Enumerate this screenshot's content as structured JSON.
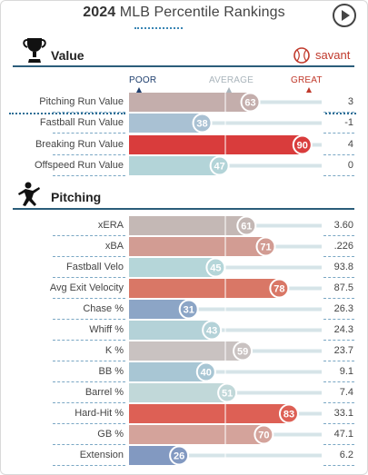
{
  "header": {
    "year": "2024",
    "title": "MLB Percentile Rankings",
    "play_icon": "play-icon"
  },
  "sections": {
    "value": {
      "title": "Value",
      "icon": "trophy-icon"
    },
    "pitching": {
      "title": "Pitching",
      "icon": "pitcher-icon"
    }
  },
  "savant": {
    "label": "savant",
    "icon": "baseball-icon",
    "color": "#c0392b"
  },
  "scale": {
    "poor": "POOR",
    "average": "AVERAGE",
    "great": "GREAT",
    "poor_color": "#1f3f6e",
    "average_color": "#a9b4bb",
    "great_color": "#c0392b"
  },
  "chart_data": {
    "type": "bar",
    "xlim": [
      0,
      100
    ],
    "groups": [
      {
        "name": "Value",
        "rows": [
          {
            "metric": "Pitching Run Value",
            "percentile": 63,
            "value": "3",
            "color": "#c4aeac"
          },
          {
            "metric": "Fastball Run Value",
            "percentile": 38,
            "value": "-1",
            "color": "#a9c1d3"
          },
          {
            "metric": "Breaking Run Value",
            "percentile": 90,
            "value": "4",
            "color": "#d93c3c"
          },
          {
            "metric": "Offspeed Run Value",
            "percentile": 47,
            "value": "0",
            "color": "#b3d4d8"
          }
        ]
      },
      {
        "name": "Pitching",
        "rows": [
          {
            "metric": "xERA",
            "percentile": 61,
            "value": "3.60",
            "color": "#c4b8b5"
          },
          {
            "metric": "xBA",
            "percentile": 71,
            "value": ".226",
            "color": "#d29c93"
          },
          {
            "metric": "Fastball Velo",
            "percentile": 45,
            "value": "93.8",
            "color": "#b5d6d9"
          },
          {
            "metric": "Avg Exit Velocity",
            "percentile": 78,
            "value": "87.5",
            "color": "#d97766"
          },
          {
            "metric": "Chase %",
            "percentile": 31,
            "value": "26.3",
            "color": "#8ca5c6"
          },
          {
            "metric": "Whiff %",
            "percentile": 43,
            "value": "24.3",
            "color": "#b4d2d8"
          },
          {
            "metric": "K %",
            "percentile": 59,
            "value": "23.7",
            "color": "#c9c2c1"
          },
          {
            "metric": "BB %",
            "percentile": 40,
            "value": "9.1",
            "color": "#a8c6d4"
          },
          {
            "metric": "Barrel %",
            "percentile": 51,
            "value": "7.4",
            "color": "#c1d8d9"
          },
          {
            "metric": "Hard-Hit %",
            "percentile": 83,
            "value": "33.1",
            "color": "#dd6055"
          },
          {
            "metric": "GB %",
            "percentile": 70,
            "value": "47.1",
            "color": "#d4a39b"
          },
          {
            "metric": "Extension",
            "percentile": 26,
            "value": "6.2",
            "color": "#8299c1"
          }
        ]
      }
    ]
  }
}
